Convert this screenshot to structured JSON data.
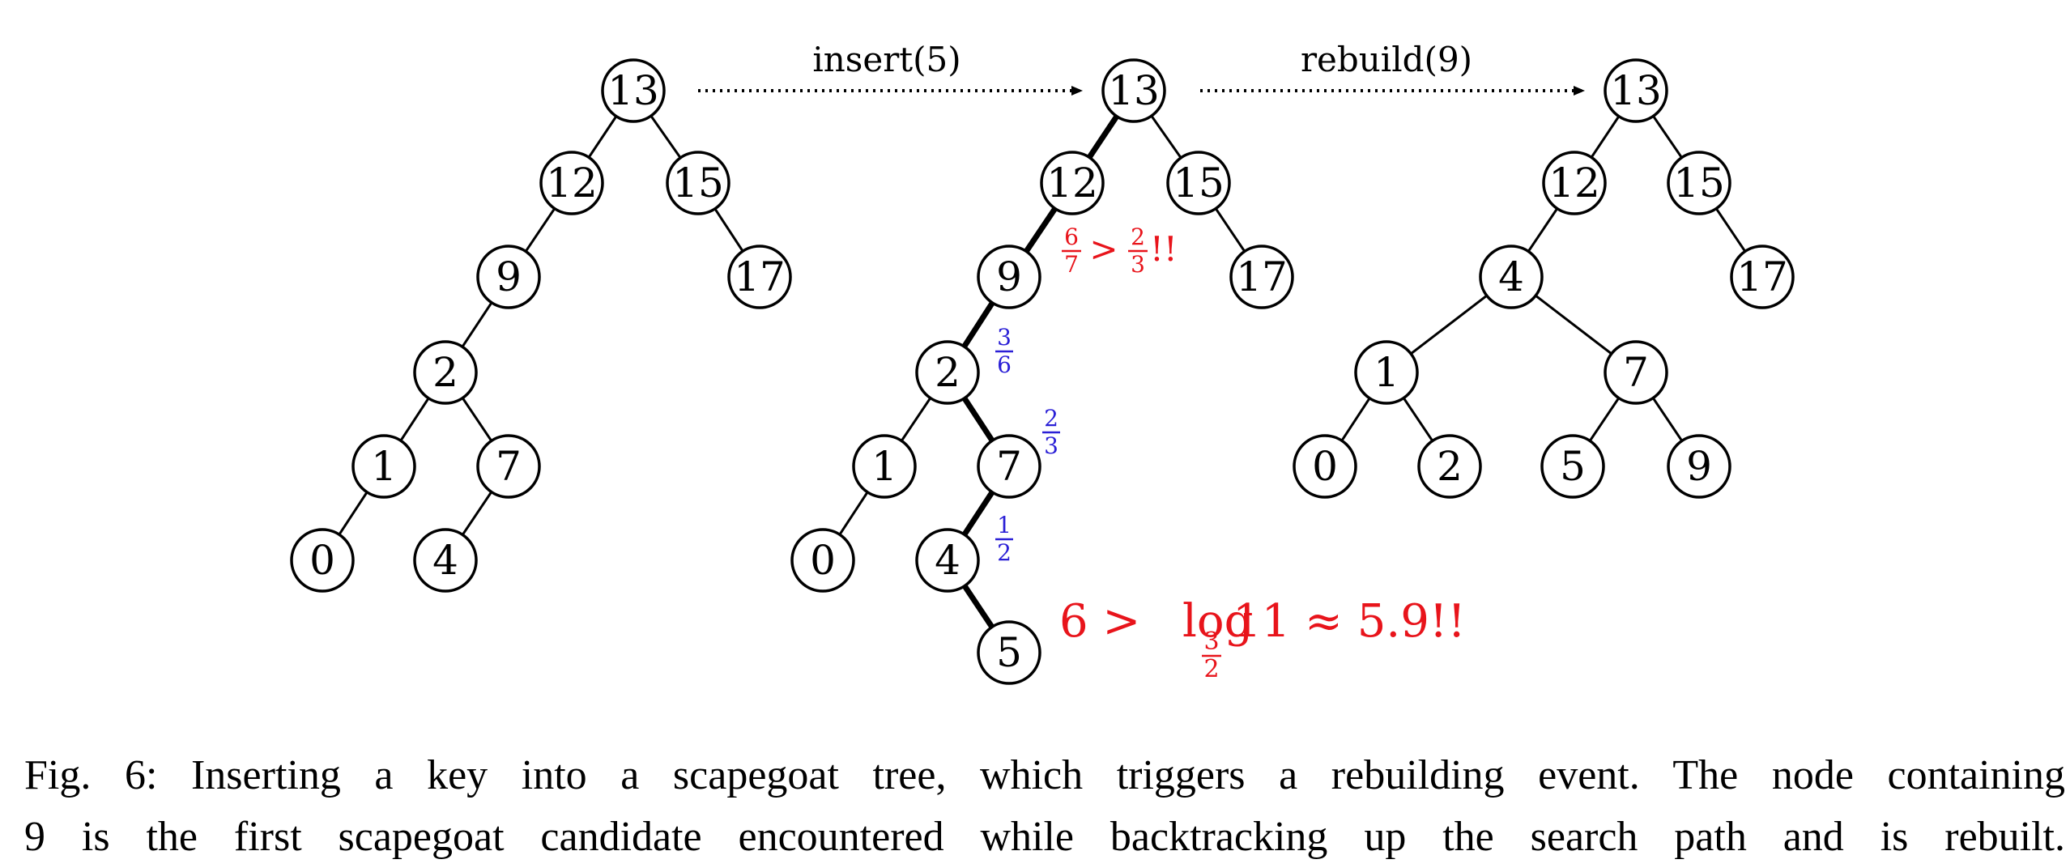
{
  "diagram": {
    "arrows": [
      {
        "label": "insert(5)"
      },
      {
        "label": "rebuild(9)"
      }
    ],
    "trees": [
      {
        "nodes": [
          "13",
          "12",
          "15",
          "9",
          "17",
          "2",
          "1",
          "7",
          "0",
          "4"
        ],
        "edges": [
          [
            "13",
            "12"
          ],
          [
            "13",
            "15"
          ],
          [
            "12",
            "9"
          ],
          [
            "15",
            "17"
          ],
          [
            "9",
            "2"
          ],
          [
            "2",
            "1"
          ],
          [
            "2",
            "7"
          ],
          [
            "1",
            "0"
          ],
          [
            "7",
            "4"
          ]
        ]
      },
      {
        "nodes": [
          "13",
          "12",
          "15",
          "9",
          "17",
          "2",
          "1",
          "7",
          "0",
          "4",
          "5"
        ],
        "edges": [
          [
            "13",
            "12"
          ],
          [
            "13",
            "15"
          ],
          [
            "12",
            "9"
          ],
          [
            "15",
            "17"
          ],
          [
            "9",
            "2"
          ],
          [
            "2",
            "1"
          ],
          [
            "2",
            "7"
          ],
          [
            "1",
            "0"
          ],
          [
            "7",
            "4"
          ],
          [
            "4",
            "5"
          ]
        ],
        "search_path": [
          "13",
          "12",
          "9",
          "2",
          "7",
          "4",
          "5"
        ],
        "ratios": [
          {
            "node": "7",
            "num": "2",
            "den": "3"
          },
          {
            "node": "4",
            "num": "1",
            "den": "2"
          },
          {
            "node": "2",
            "num": "3",
            "den": "6"
          }
        ],
        "scapegoat_note": {
          "lhs_num": "6",
          "lhs_den": "7",
          "op": ">",
          "rhs_num": "2",
          "rhs_den": "3",
          "bang": "!!"
        },
        "depth_note": {
          "lhs": "6 >",
          "log": "log",
          "base_num": "3",
          "base_den": "2",
          "rhs": "11 ≈ 5.9!!"
        }
      },
      {
        "nodes": [
          "13",
          "12",
          "15",
          "4",
          "17",
          "1",
          "7",
          "0",
          "2",
          "5",
          "9"
        ],
        "edges": [
          [
            "13",
            "12"
          ],
          [
            "13",
            "15"
          ],
          [
            "12",
            "4"
          ],
          [
            "15",
            "17"
          ],
          [
            "4",
            "1"
          ],
          [
            "4",
            "7"
          ],
          [
            "1",
            "0"
          ],
          [
            "1",
            "2"
          ],
          [
            "7",
            "5"
          ],
          [
            "7",
            "9"
          ]
        ]
      }
    ],
    "colors": {
      "highlight": "#e8141b",
      "ratio": "#2a1fd6",
      "ink": "#000000"
    }
  },
  "caption": {
    "line1": "Fig. 6: Inserting a key into a scapegoat tree, which triggers a rebuilding event. The node containing",
    "line2": "9 is the first scapegoat candidate encountered while backtracking up the search path and is rebuilt."
  }
}
